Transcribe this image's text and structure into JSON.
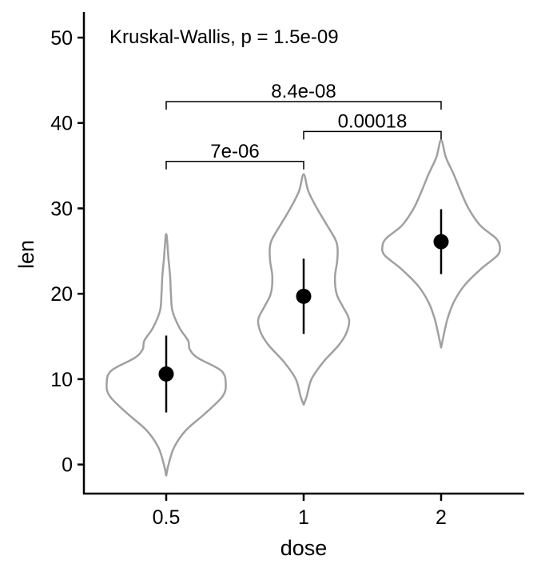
{
  "chart_data": {
    "type": "violin",
    "title": "",
    "xlabel": "dose",
    "ylabel": "len",
    "categories": [
      "0.5",
      "1",
      "2"
    ],
    "ylim": [
      -3.5,
      53
    ],
    "yticks": [
      0,
      10,
      20,
      30,
      40,
      50
    ],
    "annotation": "Kruskal-Wallis, p = 1.5e-09",
    "grid": false,
    "legend": "none",
    "colors": {
      "violin": "#a0a0a0",
      "point": "#000000",
      "axis": "#000000"
    },
    "summary": [
      {
        "category": "0.5",
        "mean": 10.6,
        "low": 6.1,
        "high": 15.1
      },
      {
        "category": "1",
        "mean": 19.7,
        "low": 15.3,
        "high": 24.1
      },
      {
        "category": "2",
        "mean": 26.1,
        "low": 22.3,
        "high": 29.9
      }
    ],
    "violins": [
      {
        "category": "0.5",
        "profile": [
          [
            -1.3,
            0
          ],
          [
            0,
            0.03
          ],
          [
            2,
            0.1
          ],
          [
            4,
            0.25
          ],
          [
            6,
            0.5
          ],
          [
            8,
            0.72
          ],
          [
            9.5,
            0.76
          ],
          [
            11,
            0.7
          ],
          [
            12.5,
            0.4
          ],
          [
            13.5,
            0.3
          ],
          [
            14.5,
            0.28
          ],
          [
            16,
            0.17
          ],
          [
            18,
            0.08
          ],
          [
            20,
            0.06
          ],
          [
            22,
            0.05
          ],
          [
            24,
            0.03
          ],
          [
            27,
            0
          ]
        ]
      },
      {
        "category": "1",
        "profile": [
          [
            7,
            0
          ],
          [
            8,
            0.04
          ],
          [
            10,
            0.1
          ],
          [
            12,
            0.25
          ],
          [
            14,
            0.45
          ],
          [
            15.5,
            0.55
          ],
          [
            17,
            0.58
          ],
          [
            18.5,
            0.5
          ],
          [
            20,
            0.42
          ],
          [
            22,
            0.4
          ],
          [
            24,
            0.43
          ],
          [
            26,
            0.42
          ],
          [
            28,
            0.3
          ],
          [
            30,
            0.17
          ],
          [
            32,
            0.06
          ],
          [
            34,
            0
          ]
        ]
      },
      {
        "category": "2",
        "profile": [
          [
            13.7,
            0
          ],
          [
            15,
            0.03
          ],
          [
            17,
            0.08
          ],
          [
            19,
            0.16
          ],
          [
            21,
            0.3
          ],
          [
            23,
            0.52
          ],
          [
            24.5,
            0.72
          ],
          [
            25.5,
            0.75
          ],
          [
            26.5,
            0.7
          ],
          [
            28,
            0.5
          ],
          [
            30,
            0.35
          ],
          [
            32,
            0.25
          ],
          [
            34,
            0.16
          ],
          [
            36,
            0.06
          ],
          [
            38,
            0
          ]
        ]
      }
    ],
    "comparisons": [
      {
        "from": "0.5",
        "to": "1",
        "y": 35.5,
        "label": "7e-06"
      },
      {
        "from": "1",
        "to": "2",
        "y": 39,
        "label": "0.00018"
      },
      {
        "from": "0.5",
        "to": "2",
        "y": 42.5,
        "label": "8.4e-08"
      }
    ]
  }
}
